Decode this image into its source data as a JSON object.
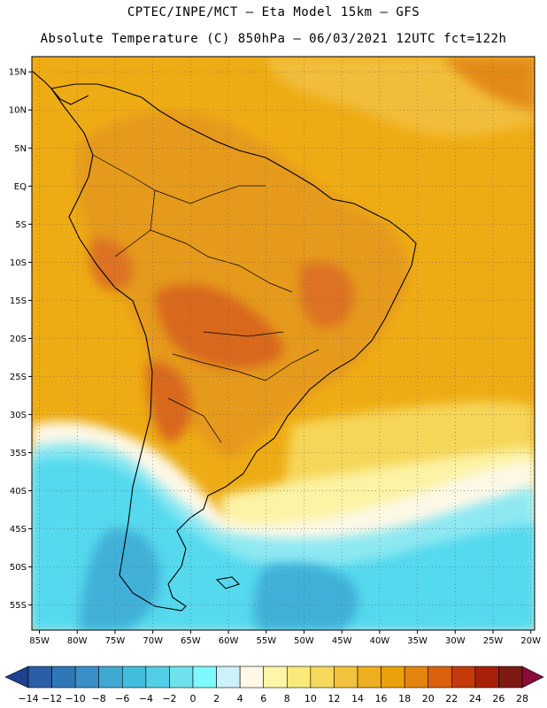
{
  "title_line1": "CPTEC/INPE/MCT –  Eta Model 15km – GFS",
  "title_line2": "Absolute Temperature (C) 850hPa – 06/03/2021 12UTC fct=122h",
  "map": {
    "lat_labels": [
      "15N",
      "10N",
      "5N",
      "EQ",
      "5S",
      "10S",
      "15S",
      "20S",
      "25S",
      "30S",
      "35S",
      "40S",
      "45S",
      "50S",
      "55S"
    ],
    "lat_values": [
      15,
      10,
      5,
      0,
      -5,
      -10,
      -15,
      -20,
      -25,
      -30,
      -35,
      -40,
      -45,
      -50,
      -55
    ],
    "lon_labels": [
      "85W",
      "80W",
      "75W",
      "70W",
      "65W",
      "60W",
      "55W",
      "50W",
      "45W",
      "40W",
      "35W",
      "30W",
      "25W",
      "20W"
    ],
    "lon_values": [
      -85,
      -80,
      -75,
      -70,
      -65,
      -60,
      -55,
      -50,
      -45,
      -40,
      -35,
      -30,
      -25,
      -20
    ],
    "lat_range": [
      -58.3,
      17.0
    ],
    "lon_range": [
      -86.0,
      -19.5
    ],
    "gridlines": "dotted"
  },
  "colorbar": {
    "labels": [
      "-14",
      "-12",
      "-10",
      "-8",
      "-6",
      "-4",
      "-2",
      "0",
      "2",
      "4",
      "6",
      "8",
      "10",
      "12",
      "14",
      "16",
      "18",
      "20",
      "22",
      "24",
      "26",
      "28"
    ],
    "colors": [
      "#1f3f8f",
      "#2b5ea5",
      "#2f78b8",
      "#3a8fc8",
      "#3fa8d2",
      "#43bddd",
      "#52cfe6",
      "#6ee0ee",
      "#7df9ff",
      "#cdf1fb",
      "#fff8e6",
      "#fdf6a8",
      "#f9ea7a",
      "#f6d85c",
      "#f2c23d",
      "#eeae1e",
      "#eba10a",
      "#e38410",
      "#db6110",
      "#c43a0a",
      "#a82008",
      "#7d1a14",
      "#8a0a3a"
    ]
  },
  "regions": {
    "ocean_south": "#53d8ee",
    "ocean_mid": "#eea914",
    "land_warm": "#e38d1a",
    "land_hot": "#d7671b",
    "pale_band": "#fdf8e7",
    "yellow_band": "#f9e27a",
    "cold_core": "#3fb0d8"
  }
}
